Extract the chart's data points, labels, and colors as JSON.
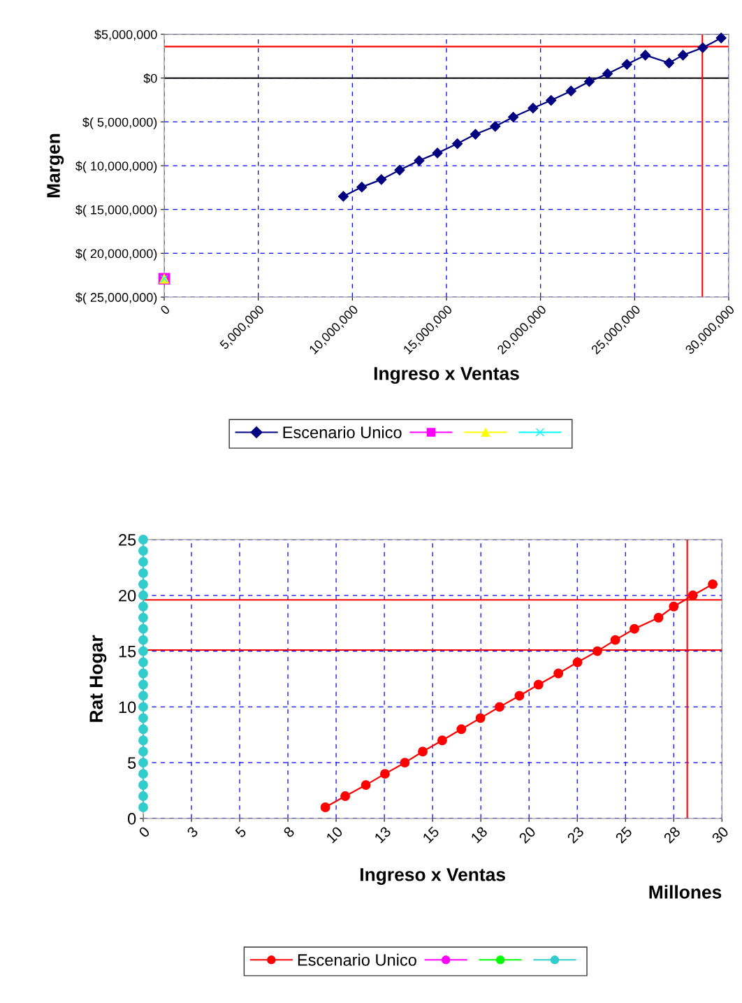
{
  "chart_data": [
    {
      "type": "line",
      "xlabel": "Ingreso x Ventas",
      "ylabel": "Margen",
      "legend": "bottom",
      "grid": true,
      "xlim": [
        0,
        30000000
      ],
      "xticks": [
        0,
        {
          "value": 5000000,
          "label": "5,000,000"
        },
        {
          "value": 10000000,
          "label": "10,000,000"
        },
        {
          "value": 15000000,
          "label": "15,000,000"
        },
        {
          "value": 20000000,
          "label": "20,000,000"
        },
        {
          "value": 25000000,
          "label": "25,000,000"
        },
        {
          "value": 30000000,
          "label": "30,000,000"
        }
      ],
      "ylim": [
        -25000000,
        5000000
      ],
      "yticks": [
        {
          "value": -25000000,
          "label": "$( 25,000,000)"
        },
        {
          "value": -20000000,
          "label": "$( 20,000,000)"
        },
        {
          "value": -15000000,
          "label": "$( 15,000,000)"
        },
        {
          "value": -10000000,
          "label": "$( 10,000,000)"
        },
        {
          "value": -5000000,
          "label": "$( 5,000,000)"
        },
        {
          "value": 0,
          "label": "$0"
        },
        {
          "value": 5000000,
          "label": "$5,000,000"
        }
      ],
      "series": [
        {
          "name": "Escenario Unico",
          "color": "#000080",
          "marker": "diamond",
          "x": [
            9520000,
            10500000,
            11540000,
            12510000,
            13550000,
            14520000,
            15580000,
            16540000,
            17590000,
            18550000,
            19600000,
            20560000,
            21620000,
            22590000,
            23560000,
            24590000,
            25570000,
            26830000,
            27570000,
            28620000,
            29600000
          ],
          "values": [
            -13500000,
            -12440000,
            -11580000,
            -10500000,
            -9420000,
            -8550000,
            -7490000,
            -6410000,
            -5510000,
            -4450000,
            -3430000,
            -2540000,
            -1470000,
            -400000,
            500000,
            1570000,
            2620000,
            1730000,
            2620000,
            3470000,
            4580000
          ]
        },
        {
          "color": "#ff00ff",
          "marker": "square",
          "x": [
            0
          ],
          "values": [
            -22900000
          ]
        },
        {
          "color": "#ffff00",
          "marker": "triangle",
          "x": [
            0
          ],
          "values": [
            -22900000
          ]
        },
        {
          "color": "#00ffff",
          "marker": "cross",
          "x": [
            0
          ],
          "values": [
            -22900000
          ]
        }
      ],
      "ref_lines": [
        {
          "axis": "y",
          "value": 0,
          "color": "#000000"
        },
        {
          "axis": "y",
          "value": 3600000,
          "color": "#ff0000"
        },
        {
          "axis": "x",
          "value": 28600000,
          "color": "#ff0000"
        }
      ]
    },
    {
      "type": "line",
      "xlabel": "Ingreso x Ventas",
      "ylabel": "Rat Hogar",
      "legend": "bottom",
      "grid": true,
      "annotations": [
        "Millones"
      ],
      "xlim": [
        0,
        30
      ],
      "xticks": [
        0,
        {
          "value": 2.5,
          "label": "3"
        },
        5,
        {
          "value": 7.5,
          "label": "8"
        },
        10,
        {
          "value": 12.5,
          "label": "13"
        },
        15,
        {
          "value": 17.5,
          "label": "18"
        },
        20,
        {
          "value": 22.5,
          "label": "23"
        },
        25,
        {
          "value": 27.5,
          "label": "28"
        },
        30
      ],
      "ylim": [
        0,
        25
      ],
      "yticks": [
        0,
        5,
        10,
        15,
        20,
        25
      ],
      "series": [
        {
          "name": "Escenario Unico",
          "color": "#ff0000",
          "marker": "circle",
          "x": [
            9.44,
            10.47,
            11.54,
            12.53,
            13.56,
            14.49,
            15.5,
            16.49,
            17.48,
            18.47,
            19.5,
            20.49,
            21.52,
            22.51,
            23.54,
            24.47,
            25.46,
            26.71,
            27.5,
            28.49,
            29.52
          ],
          "values": [
            1,
            2,
            3,
            4,
            5,
            6,
            7,
            8,
            9,
            10,
            11,
            12,
            13,
            14,
            15,
            16,
            17,
            18,
            19,
            20,
            21
          ]
        },
        {
          "color": "#ff00ff",
          "marker": "circle",
          "x": [
            null
          ],
          "values": [
            null
          ]
        },
        {
          "color": "#00ff00",
          "marker": "circle",
          "x": [
            null
          ],
          "values": [
            null
          ]
        },
        {
          "color": "#33cccc",
          "marker": "circle",
          "x": [
            0,
            0,
            0,
            0,
            0,
            0,
            0,
            0,
            0,
            0,
            0,
            0,
            0,
            0,
            0,
            0,
            0,
            0,
            0,
            0,
            0,
            0,
            0,
            0,
            0
          ],
          "values": [
            1,
            2,
            3,
            4,
            5,
            6,
            7,
            8,
            9,
            10,
            11,
            12,
            13,
            14,
            15,
            16,
            17,
            18,
            19,
            20,
            21,
            22,
            23,
            24,
            25
          ]
        }
      ],
      "ref_lines": [
        {
          "axis": "y",
          "value": 19.6,
          "color": "#ff0000"
        },
        {
          "axis": "y",
          "value": 15.1,
          "color": "#ff0000"
        },
        {
          "axis": "x",
          "value": 28.2,
          "color": "#ff0000"
        }
      ]
    }
  ]
}
